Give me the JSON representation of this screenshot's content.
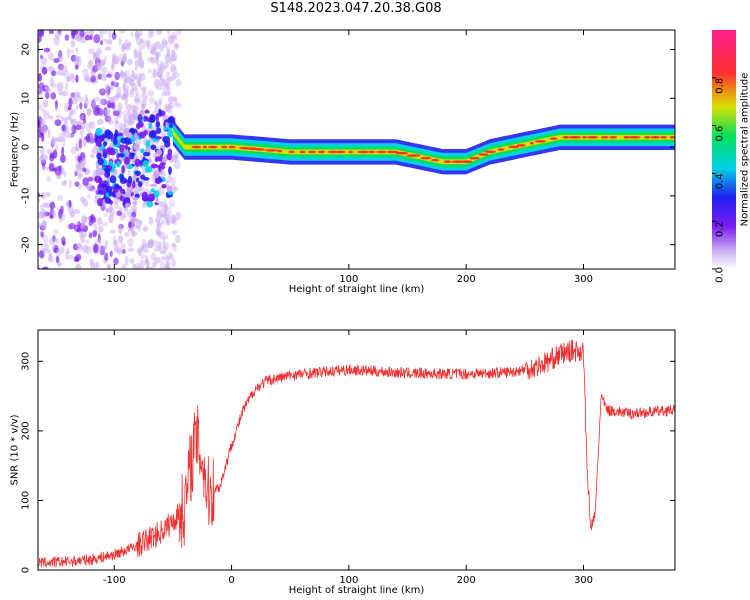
{
  "title": "S148.2023.047.20.38.G08",
  "chart_data": [
    {
      "type": "heatmap",
      "xlabel": "Height of straight line (km)",
      "ylabel": "Frequency (Hz)",
      "xlim": [
        -165,
        378
      ],
      "ylim": [
        -25,
        24
      ],
      "xticks": [
        -100,
        0,
        100,
        200,
        300
      ],
      "yticks": [
        -20,
        -10,
        0,
        10,
        20
      ],
      "colorbar": {
        "label": "Normalized spectral amplitude",
        "range": [
          0,
          1
        ],
        "ticks": [
          0.0,
          0.2,
          0.4,
          0.6,
          0.8
        ],
        "tick_labels": [
          "0.0",
          "0.2",
          "0.4",
          "0.6",
          "0.8"
        ],
        "colormap": [
          "#ffffff",
          "#c9a8f2",
          "#7a1cf0",
          "#2020f0",
          "#00d0e8",
          "#00e060",
          "#d8e000",
          "#ff3030",
          "#ff2090"
        ]
      },
      "ridge": {
        "x": [
          -50,
          -40,
          -30,
          -20,
          0,
          50,
          100,
          140,
          160,
          180,
          200,
          210,
          220,
          240,
          260,
          280,
          300,
          340,
          378
        ],
        "freq": [
          3,
          0,
          0,
          0,
          0,
          -1,
          -1,
          -1,
          -2,
          -3,
          -3,
          -2,
          -1,
          0,
          1,
          2,
          2,
          2,
          2
        ]
      }
    },
    {
      "type": "line",
      "xlabel": "Height of straight line (km)",
      "ylabel": "SNR (10 * v/v)",
      "xlim": [
        -165,
        378
      ],
      "ylim": [
        0,
        345
      ],
      "xticks": [
        -100,
        0,
        100,
        200,
        300
      ],
      "yticks": [
        0,
        100,
        200,
        300
      ],
      "series": [
        {
          "color": "#f03030",
          "x": [
            -165,
            -140,
            -120,
            -100,
            -80,
            -60,
            -50,
            -40,
            -35,
            -30,
            -25,
            -20,
            -10,
            0,
            10,
            20,
            30,
            50,
            80,
            100,
            130,
            150,
            180,
            200,
            220,
            240,
            260,
            270,
            280,
            290,
            300,
            303,
            306,
            310,
            315,
            320,
            340,
            378
          ],
          "y": [
            10,
            12,
            15,
            22,
            35,
            55,
            70,
            90,
            150,
            190,
            160,
            110,
            120,
            180,
            230,
            260,
            272,
            280,
            285,
            288,
            285,
            283,
            282,
            282,
            283,
            285,
            292,
            300,
            310,
            315,
            315,
            150,
            60,
            80,
            250,
            230,
            225,
            230
          ]
        }
      ]
    }
  ]
}
